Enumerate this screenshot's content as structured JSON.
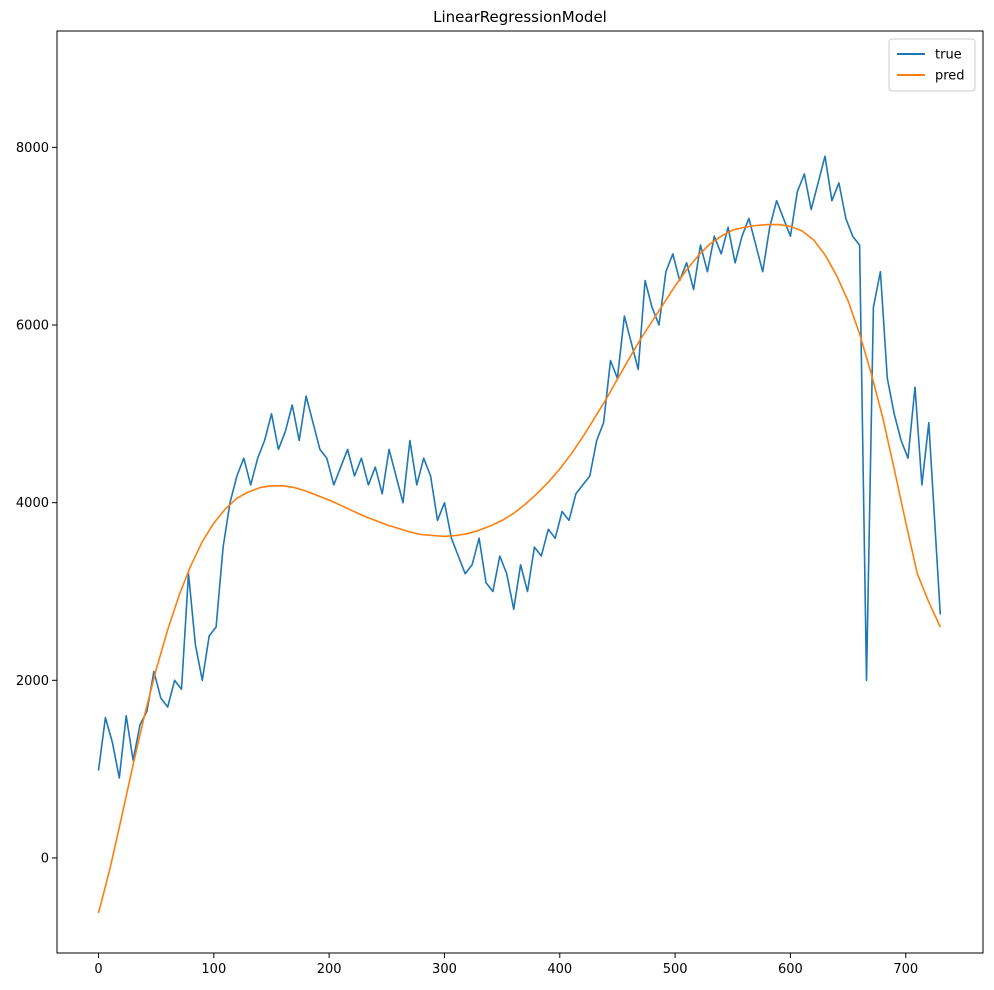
{
  "chart_data": {
    "type": "line",
    "title": "LinearRegressionModel",
    "xlabel": "",
    "ylabel": "",
    "xlim": [
      -36,
      767
    ],
    "ylim": [
      -1070,
      9310
    ],
    "x_ticks": [
      0,
      100,
      200,
      300,
      400,
      500,
      600,
      700
    ],
    "y_ticks": [
      0,
      2000,
      4000,
      6000,
      8000
    ],
    "grid": false,
    "legend": "top-right",
    "series": [
      {
        "name": "true",
        "color": "#1f77b4",
        "x": [
          0,
          6,
          12,
          18,
          24,
          30,
          36,
          42,
          48,
          54,
          60,
          66,
          72,
          78,
          84,
          90,
          96,
          102,
          108,
          114,
          120,
          126,
          132,
          138,
          144,
          150,
          156,
          162,
          168,
          174,
          180,
          186,
          192,
          198,
          204,
          210,
          216,
          222,
          228,
          234,
          240,
          246,
          252,
          258,
          264,
          270,
          276,
          282,
          288,
          294,
          300,
          306,
          312,
          318,
          324,
          330,
          336,
          342,
          348,
          354,
          360,
          366,
          372,
          378,
          384,
          390,
          396,
          402,
          408,
          414,
          420,
          426,
          432,
          438,
          444,
          450,
          456,
          462,
          468,
          474,
          480,
          486,
          492,
          498,
          504,
          510,
          516,
          522,
          528,
          534,
          540,
          546,
          552,
          558,
          564,
          570,
          576,
          582,
          588,
          594,
          600,
          606,
          612,
          618,
          624,
          630,
          636,
          642,
          648,
          654,
          660,
          666,
          672,
          678,
          684,
          690,
          696,
          702,
          708,
          714,
          720,
          726,
          730
        ],
        "y": [
          985,
          1580,
          1300,
          900,
          1600,
          1100,
          1500,
          1650,
          2100,
          1800,
          1700,
          2000,
          1900,
          3200,
          2400,
          2000,
          2500,
          2600,
          3500,
          4000,
          4300,
          4500,
          4200,
          4500,
          4700,
          5000,
          4600,
          4800,
          5100,
          4700,
          5200,
          4900,
          4600,
          4500,
          4200,
          4400,
          4600,
          4300,
          4500,
          4200,
          4400,
          4100,
          4600,
          4300,
          4000,
          4700,
          4200,
          4500,
          4300,
          3800,
          4000,
          3600,
          3400,
          3200,
          3300,
          3600,
          3100,
          3000,
          3400,
          3200,
          2800,
          3300,
          3000,
          3500,
          3400,
          3700,
          3600,
          3900,
          3800,
          4100,
          4200,
          4300,
          4700,
          4900,
          5600,
          5400,
          6100,
          5800,
          5500,
          6500,
          6200,
          6000,
          6600,
          6800,
          6500,
          6700,
          6400,
          6900,
          6600,
          7000,
          6800,
          7100,
          6700,
          7000,
          7200,
          6900,
          6600,
          7100,
          7400,
          7200,
          7000,
          7500,
          7700,
          7300,
          7600,
          7900,
          7400,
          7600,
          7200,
          7000,
          6900,
          2000,
          6200,
          6600,
          5400,
          5000,
          4700,
          4500,
          5300,
          4200,
          4900,
          3600,
          2740
        ]
      },
      {
        "name": "pred",
        "color": "#ff7f0e",
        "x": [
          0,
          10,
          20,
          30,
          40,
          50,
          60,
          70,
          80,
          90,
          100,
          110,
          120,
          130,
          140,
          150,
          160,
          170,
          180,
          190,
          200,
          210,
          220,
          230,
          240,
          250,
          260,
          270,
          280,
          290,
          300,
          310,
          320,
          330,
          340,
          350,
          360,
          370,
          380,
          390,
          400,
          410,
          420,
          430,
          440,
          450,
          460,
          470,
          480,
          490,
          500,
          510,
          520,
          530,
          540,
          550,
          560,
          570,
          580,
          590,
          600,
          610,
          620,
          630,
          640,
          650,
          660,
          670,
          680,
          690,
          700,
          710,
          720,
          730
        ],
        "y": [
          -620,
          -120,
          460,
          1050,
          1610,
          2120,
          2570,
          2960,
          3290,
          3560,
          3770,
          3930,
          4050,
          4120,
          4170,
          4190,
          4190,
          4170,
          4130,
          4080,
          4030,
          3970,
          3910,
          3850,
          3800,
          3750,
          3710,
          3670,
          3640,
          3630,
          3620,
          3630,
          3650,
          3690,
          3740,
          3800,
          3880,
          3980,
          4100,
          4230,
          4380,
          4550,
          4740,
          4950,
          5160,
          5390,
          5620,
          5840,
          6040,
          6240,
          6440,
          6620,
          6780,
          6910,
          7000,
          7070,
          7100,
          7120,
          7130,
          7130,
          7110,
          7060,
          6960,
          6790,
          6560,
          6270,
          5900,
          5460,
          4960,
          4380,
          3780,
          3200,
          2880,
          2600
        ]
      }
    ]
  }
}
